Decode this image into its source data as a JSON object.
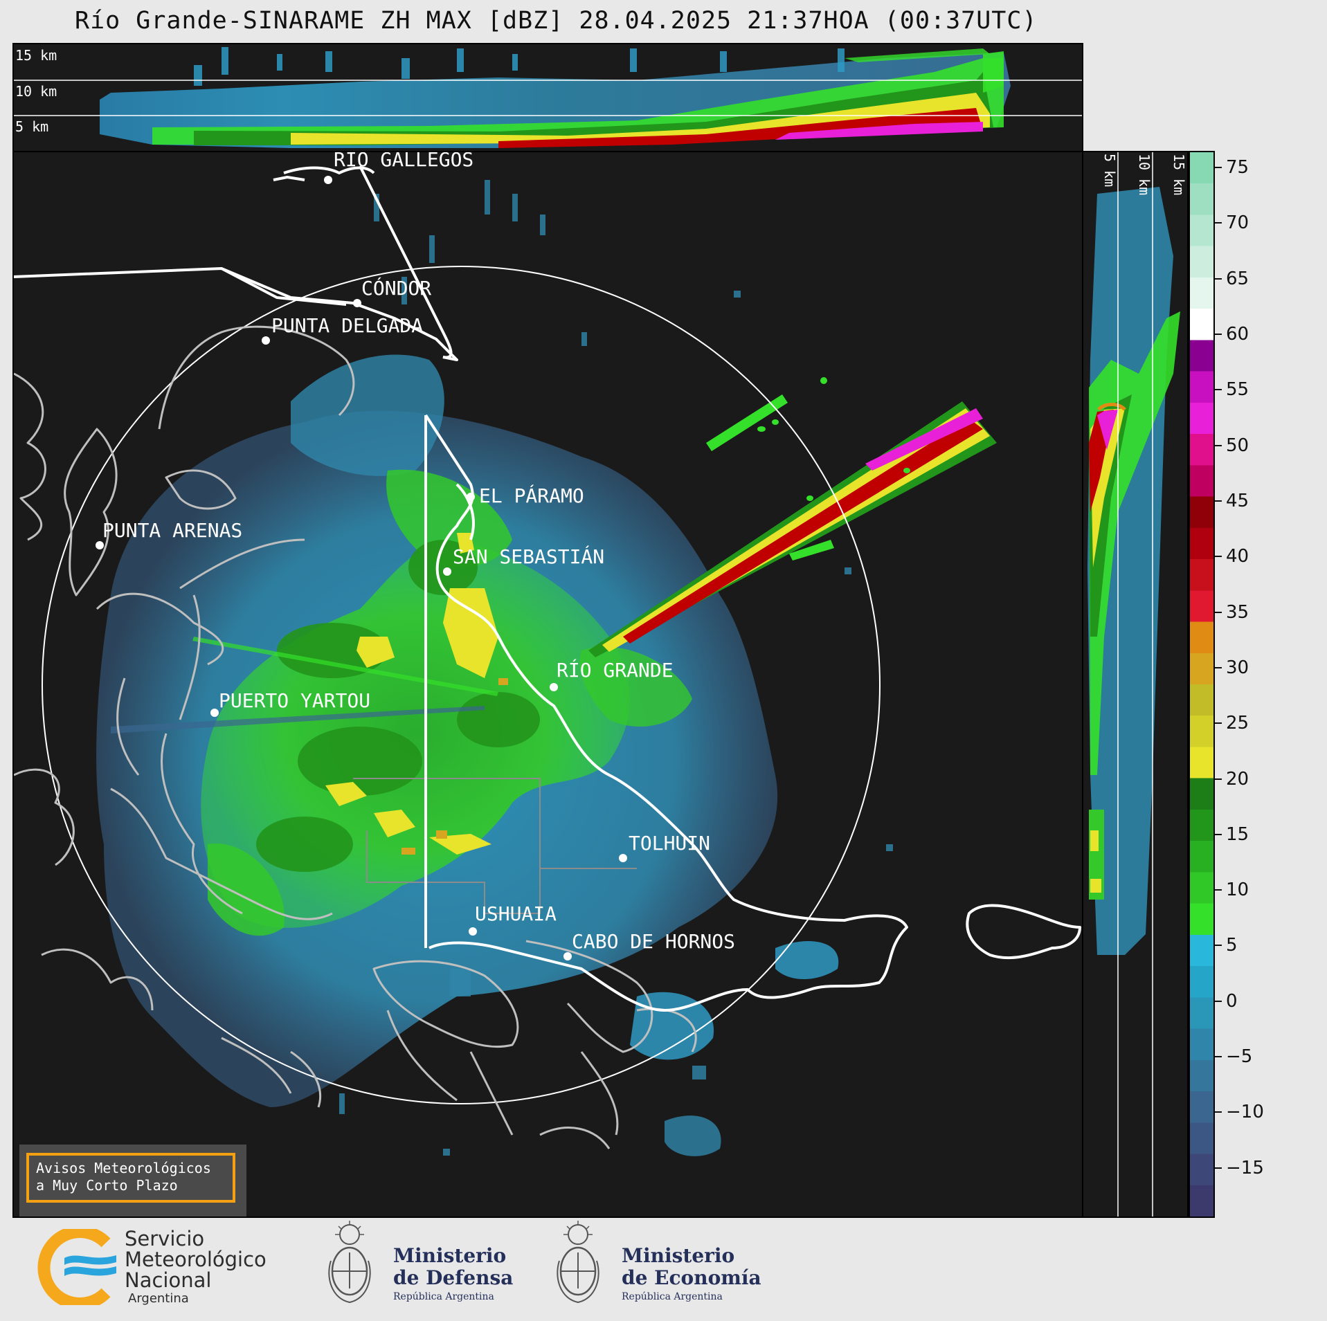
{
  "title": "Río Grande-SINARAME ZH MAX [dBZ] 28.04.2025 21:37HOA (00:37UTC)",
  "top_panel": {
    "altitude_labels": [
      "15 km",
      "10 km",
      "5 km"
    ]
  },
  "side_panel": {
    "altitude_labels": [
      "5 km",
      "10 km",
      "15 km"
    ]
  },
  "cities": [
    {
      "name": "RÍO GALLEGOS"
    },
    {
      "name": "CÓNDOR"
    },
    {
      "name": "PUNTA DELGADA"
    },
    {
      "name": "EL PÁRAMO"
    },
    {
      "name": "PUNTA ARENAS"
    },
    {
      "name": "SAN SEBASTIÁN"
    },
    {
      "name": "RÍO GRANDE"
    },
    {
      "name": "PUERTO YARTOU"
    },
    {
      "name": "TOLHUIN"
    },
    {
      "name": "USHUAIA"
    },
    {
      "name": "CABO DE HORNOS"
    }
  ],
  "colorbar": {
    "unit": "dBZ",
    "ticks": [
      "75",
      "70",
      "65",
      "60",
      "55",
      "50",
      "45",
      "40",
      "35",
      "30",
      "25",
      "20",
      "15",
      "10",
      "5",
      "0",
      "−5",
      "−10",
      "−15"
    ],
    "colors": [
      "#3c3a6c",
      "#3e4878",
      "#3d5784",
      "#3a6690",
      "#35769c",
      "#2f86aa",
      "#2a96b8",
      "#25a6c8",
      "#29b7dc",
      "#34e02a",
      "#2fc827",
      "#29b022",
      "#22951b",
      "#1d7d16",
      "#e8e42c",
      "#d4d02a",
      "#c2bc28",
      "#d7a520",
      "#e08c14",
      "#e01830",
      "#c8101c",
      "#b00010",
      "#900008",
      "#c00060",
      "#e0108c",
      "#e820d8",
      "#c810c0",
      "#8a0090",
      "#ffffff",
      "#e4f6ee",
      "#cdeede",
      "#b5e6cf",
      "#9ddfc0",
      "#86d9b2"
    ],
    "range": [
      -19.5,
      76.5
    ]
  },
  "alert_box": {
    "line1": "Avisos Meteorológicos",
    "line2": "a Muy Corto Plazo"
  },
  "logos": {
    "smn": {
      "line1": "Servicio",
      "line2": "Meteorológico",
      "line3": "Nacional",
      "line4": "Argentina"
    },
    "defensa": {
      "line1": "Ministerio",
      "line2": "de Defensa",
      "line3": "República Argentina"
    },
    "economia": {
      "line1": "Ministerio",
      "line2": "de Economía",
      "line3": "República Argentina"
    }
  }
}
